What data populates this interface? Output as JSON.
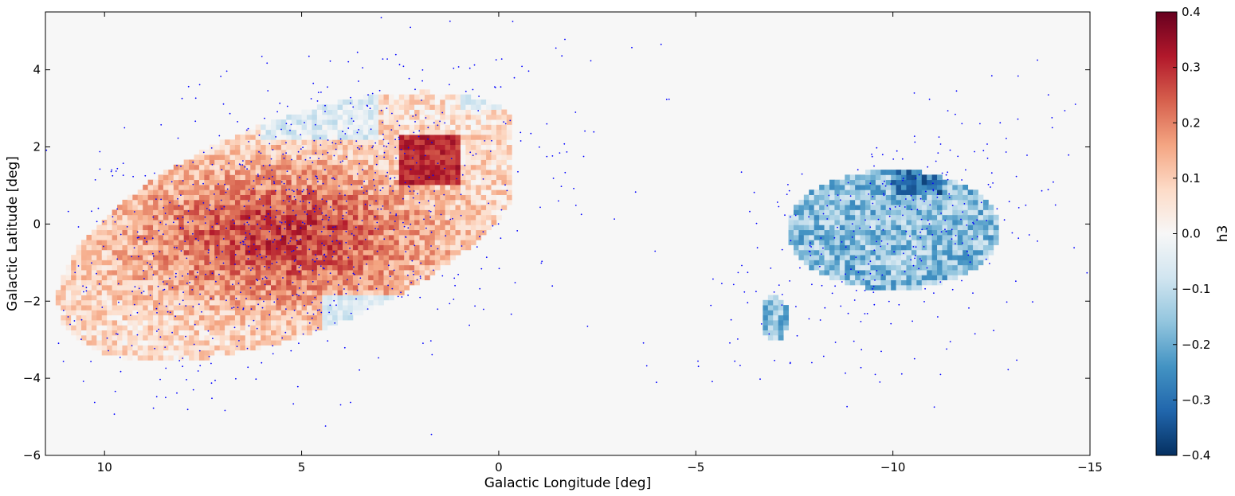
{
  "chart_data": {
    "type": "heatmap",
    "title": "",
    "xlabel": "Galactic Longitude [deg]",
    "ylabel": "Galactic Latitude [deg]",
    "xlim": [
      11.5,
      -15
    ],
    "ylim": [
      -6,
      5.5
    ],
    "x_ticks": [
      10,
      5,
      0,
      -5,
      -10,
      -15
    ],
    "x_tick_labels": [
      "10",
      "5",
      "0",
      "−5",
      "−10",
      "−15"
    ],
    "y_ticks": [
      -6,
      -4,
      -2,
      0,
      2,
      4
    ],
    "y_tick_labels": [
      "−6",
      "−4",
      "−2",
      "0",
      "2",
      "4"
    ],
    "grid": false,
    "colorbar": {
      "label": "h3",
      "colormap": "RdBu_r",
      "range": [
        -0.4,
        0.4
      ],
      "ticks": [
        0.4,
        0.3,
        0.2,
        0.1,
        0.0,
        -0.1,
        -0.2,
        -0.3,
        -0.4
      ],
      "tick_labels": [
        "0.4",
        "0.3",
        "0.2",
        "0.1",
        "0.0",
        "−0.1",
        "−0.2",
        "−0.3",
        "−0.4"
      ],
      "colors": [
        "#053061",
        "#2166ac",
        "#4393c3",
        "#92c5de",
        "#d1e5f0",
        "#f7f7f7",
        "#fddbc7",
        "#f4a582",
        "#d6604d",
        "#b2182b",
        "#67001f"
      ]
    },
    "background_color": "#f7f7f7",
    "point_color": "#0000ff",
    "regions": [
      {
        "description": "positive h3 region (mostly red)",
        "l_range": [
          11.2,
          -0.3
        ],
        "b_range": [
          -3.5,
          4.3
        ],
        "typical_h3": [
          0.1,
          0.35
        ]
      },
      {
        "description": "negative h3 region (blue)",
        "l_range": [
          -7.2,
          -12.7
        ],
        "b_range": [
          -3.0,
          1.5
        ],
        "typical_h3": [
          -0.35,
          -0.1
        ]
      }
    ]
  }
}
